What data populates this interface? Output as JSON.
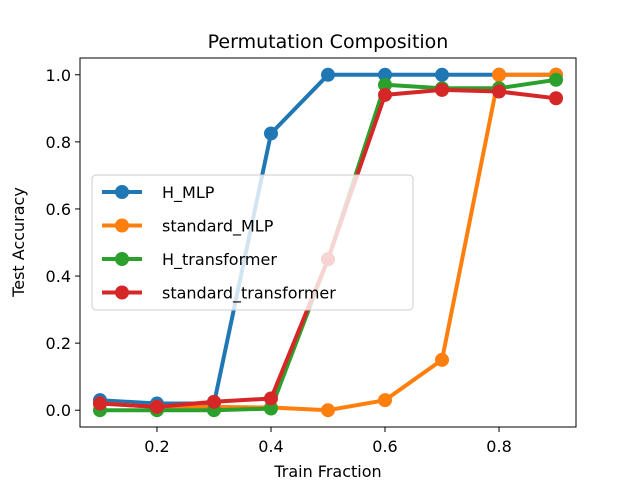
{
  "chart_data": {
    "type": "line",
    "title": "Permutation Composition",
    "xlabel": "Train Fraction",
    "ylabel": "Test Accuracy",
    "xlim": [
      0.065,
      0.935
    ],
    "ylim": [
      -0.05,
      1.05
    ],
    "xticks": [
      0.2,
      0.4,
      0.6,
      0.8
    ],
    "xtick_labels": [
      "0.2",
      "0.4",
      "0.6",
      "0.8"
    ],
    "yticks": [
      0.0,
      0.2,
      0.4,
      0.6,
      0.8,
      1.0
    ],
    "ytick_labels": [
      "0.0",
      "0.2",
      "0.4",
      "0.6",
      "0.8",
      "1.0"
    ],
    "grid": false,
    "legend_position": "center-left",
    "x": [
      0.1,
      0.2,
      0.3,
      0.4,
      0.5,
      0.6,
      0.7,
      0.8,
      0.9
    ],
    "series": [
      {
        "name": "H_MLP",
        "color": "#1f77b4",
        "values": [
          0.03,
          0.02,
          0.02,
          0.825,
          1.0,
          1.0,
          1.0,
          1.0,
          1.0
        ]
      },
      {
        "name": "standard_MLP",
        "color": "#ff7f0e",
        "values": [
          0.02,
          0.01,
          0.01,
          0.008,
          0.0,
          0.03,
          0.15,
          1.0,
          1.0
        ]
      },
      {
        "name": "H_transformer",
        "color": "#2ca02c",
        "values": [
          0.0,
          0.0,
          0.0,
          0.005,
          0.45,
          0.97,
          0.96,
          0.96,
          0.985
        ]
      },
      {
        "name": "standard_transformer",
        "color": "#d62728",
        "values": [
          0.02,
          0.01,
          0.025,
          0.035,
          0.45,
          0.94,
          0.955,
          0.95,
          0.93
        ]
      }
    ]
  }
}
